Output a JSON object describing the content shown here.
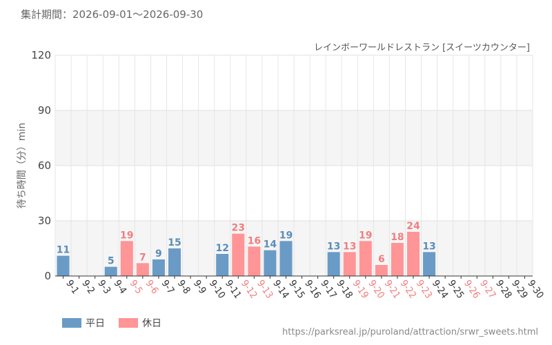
{
  "header": {
    "period": "集計期間：2026-09-01～2026-09-30",
    "subtitle": "レインボーワールドレストラン [スイーツカウンター]"
  },
  "legend": {
    "weekday": "平日",
    "holiday": "休日"
  },
  "footer": {
    "url": "https://parksreal.jp/puroland/attraction/srwr_sweets.html"
  },
  "colors": {
    "weekday": "#6a9bc6",
    "holiday": "#ff9596",
    "weekday_label": "#5b8db9",
    "holiday_label": "#f07e80"
  },
  "chart_data": {
    "type": "bar",
    "ylabel": "待ち時間（分）min",
    "ylim": [
      0,
      120
    ],
    "yticks": [
      0,
      30,
      60,
      90,
      120
    ],
    "grid": true,
    "legend_position": "bottom-left",
    "categories": [
      "9-1",
      "9-2",
      "9-3",
      "9-4",
      "9-5",
      "9-6",
      "9-7",
      "9-8",
      "9-9",
      "9-10",
      "9-11",
      "9-12",
      "9-13",
      "9-14",
      "9-15",
      "9-16",
      "9-17",
      "9-18",
      "9-19",
      "9-20",
      "9-21",
      "9-22",
      "9-23",
      "9-24",
      "9-25",
      "9-26",
      "9-27",
      "9-28",
      "9-29",
      "9-30"
    ],
    "values": [
      11,
      null,
      null,
      5,
      19,
      7,
      9,
      15,
      null,
      null,
      12,
      23,
      16,
      14,
      19,
      null,
      null,
      13,
      13,
      19,
      6,
      18,
      24,
      13,
      null,
      null,
      null,
      null,
      null,
      null
    ],
    "day_type": [
      "weekday",
      "weekday",
      "weekday",
      "weekday",
      "holiday",
      "holiday",
      "weekday",
      "weekday",
      "weekday",
      "weekday",
      "weekday",
      "holiday",
      "holiday",
      "weekday",
      "weekday",
      "weekday",
      "weekday",
      "weekday",
      "holiday",
      "holiday",
      "holiday",
      "holiday",
      "holiday",
      "weekday",
      "weekday",
      "holiday",
      "holiday",
      "weekday",
      "weekday",
      "weekday"
    ]
  }
}
